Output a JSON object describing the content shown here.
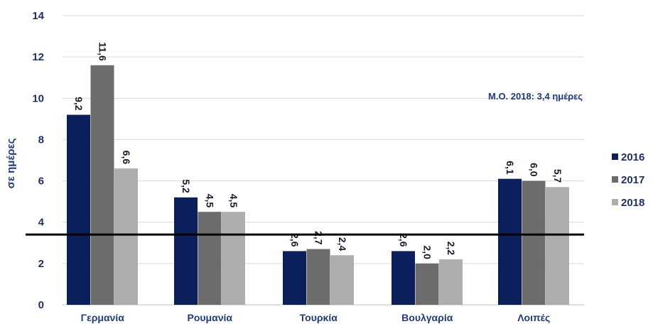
{
  "chart_data": {
    "type": "bar",
    "ylabel": "σε ημέρες",
    "ylim": [
      0,
      14
    ],
    "yticks": [
      "0",
      "2",
      "4",
      "6",
      "8",
      "10",
      "12",
      "14"
    ],
    "categories": [
      "Γερμανία",
      "Ρουμανία",
      "Τουρκία",
      "Βουλγαρία",
      "Λοιπές"
    ],
    "series": [
      {
        "name": "2016",
        "color": "#0b1f5c",
        "values": [
          9.2,
          5.2,
          2.6,
          2.6,
          6.1
        ],
        "labels": [
          "9,2",
          "5,2",
          "2,6",
          "2,6",
          "6,1"
        ]
      },
      {
        "name": "2017",
        "color": "#6e6b6d",
        "values": [
          11.6,
          4.5,
          2.7,
          2.0,
          6.0
        ],
        "labels": [
          "11,6",
          "4,5",
          "2,7",
          "2,0",
          "6,0"
        ]
      },
      {
        "name": "2018",
        "color": "#aeaeae",
        "values": [
          6.6,
          4.5,
          2.4,
          2.2,
          5.7
        ],
        "labels": [
          "6,6",
          "4,5",
          "2,4",
          "2,2",
          "5,7"
        ]
      }
    ],
    "reference_line": {
      "value": 3.4,
      "label": "Μ.Ο. 2018: 3,4 ημέρες",
      "color": "#000000"
    },
    "legend_position": "right",
    "grid": true,
    "grid_color": "#d9d9d9"
  }
}
